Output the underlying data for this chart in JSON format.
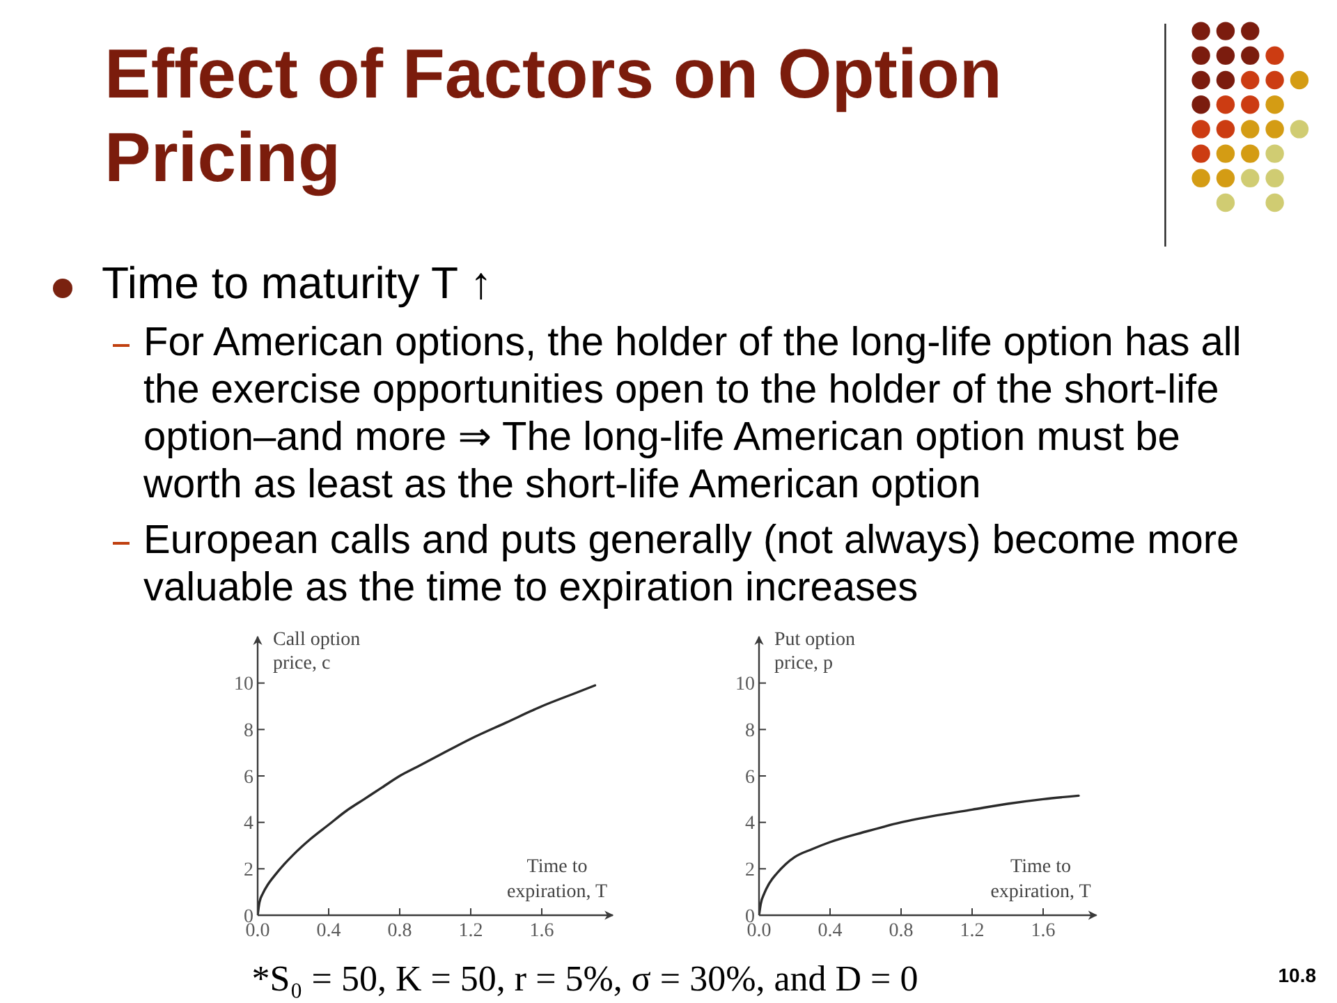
{
  "chart_data": [
    {
      "type": "other",
      "title": "Effect of Factors on Option Pricing",
      "annotations": [
        "Time to maturity T ↑",
        "For American options, the holder of the long-life option has all the exercise opportunities open to the holder of the short-life option–and more ⇒ The long-life American option must be worth as least as the short-life American option",
        "European calls and puts generally (not always) become more valuable as the time to expiration increases",
        "*S₀ = 50, K = 50, r = 5%, σ = 30%, and D = 0",
        "10.8"
      ]
    },
    {
      "type": "line",
      "xlabel": "Time to expiration, T",
      "ylabel": "Call option price, c",
      "x": [
        0,
        0.01,
        0.03,
        0.06,
        0.1,
        0.15,
        0.2,
        0.3,
        0.4,
        0.5,
        0.6,
        0.7,
        0.8,
        0.9,
        1.0,
        1.2,
        1.4,
        1.6,
        1.8,
        1.9
      ],
      "values": [
        0,
        0.55,
        0.95,
        1.35,
        1.75,
        2.2,
        2.6,
        3.3,
        3.9,
        4.5,
        5.0,
        5.5,
        6.0,
        6.4,
        6.8,
        7.6,
        8.3,
        9.0,
        9.6,
        9.9
      ],
      "color": "#2a2a2a",
      "xlim": [
        0,
        2
      ],
      "ylim": [
        0,
        12
      ],
      "xticks": [
        {
          "value": 0,
          "label": "0.0"
        },
        0.4,
        0.8,
        1.2,
        1.6
      ],
      "yticks": [
        0,
        2,
        4,
        6,
        8,
        10
      ],
      "marker": "none"
    },
    {
      "type": "line",
      "xlabel": "Time to expiration, T",
      "ylabel": "Put option price, p",
      "x": [
        0,
        0.01,
        0.03,
        0.06,
        0.1,
        0.15,
        0.2,
        0.3,
        0.4,
        0.6,
        0.8,
        1.0,
        1.2,
        1.4,
        1.6,
        1.8
      ],
      "values": [
        0,
        0.5,
        0.95,
        1.4,
        1.8,
        2.2,
        2.5,
        2.85,
        3.15,
        3.6,
        4.0,
        4.3,
        4.55,
        4.8,
        5.0,
        5.15
      ],
      "color": "#2a2a2a",
      "xlim": [
        0,
        1.9
      ],
      "ylim": [
        0,
        12
      ],
      "xticks": [
        {
          "value": 0,
          "label": "0.0"
        },
        0.4,
        0.8,
        1.2,
        1.6
      ],
      "yticks": [
        0,
        2,
        4,
        6,
        8,
        10
      ],
      "marker": "none"
    }
  ]
}
